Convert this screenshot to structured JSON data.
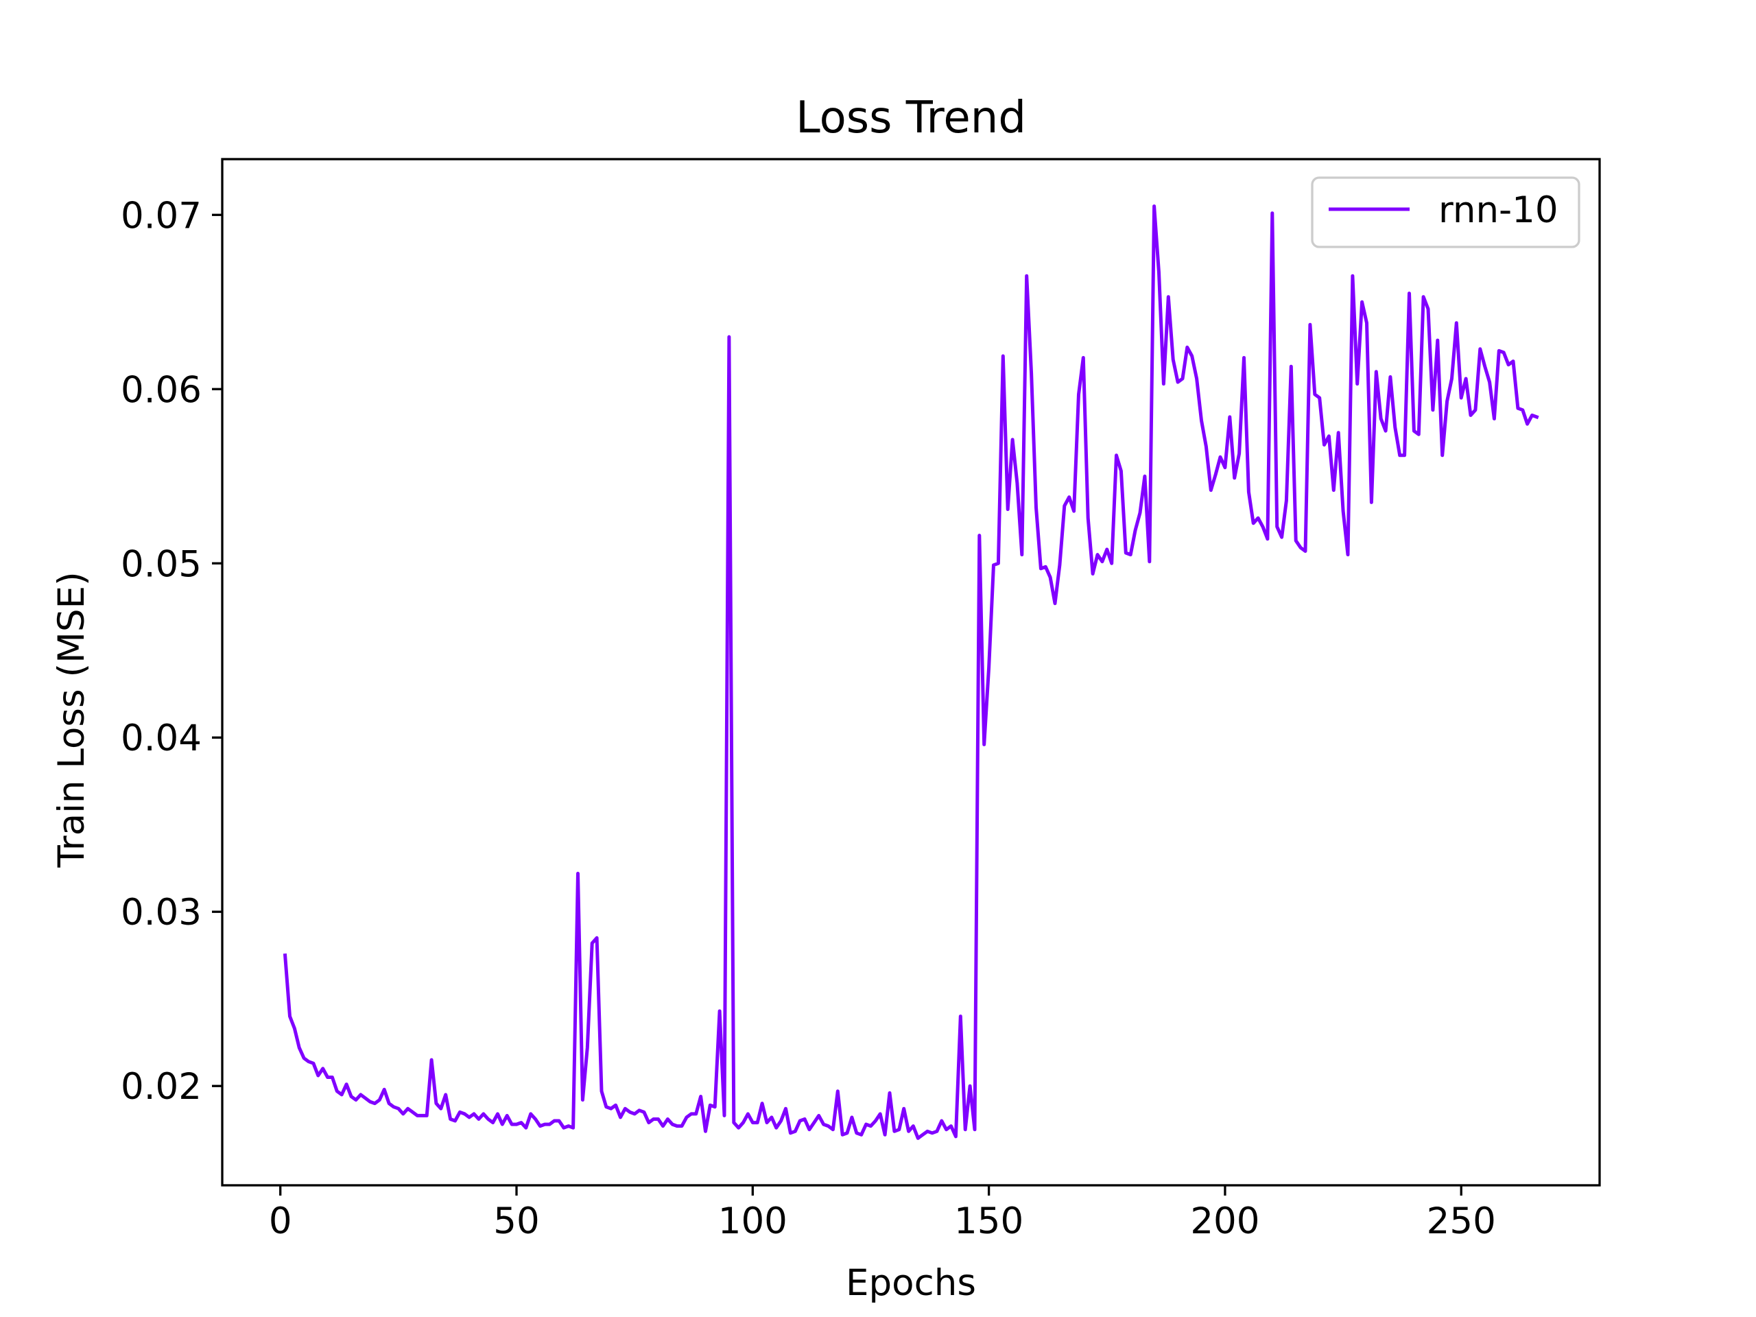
{
  "chart_data": {
    "type": "line",
    "title": "Loss Trend",
    "xlabel": "Epochs",
    "ylabel": "Train Loss (MSE)",
    "xlim": [
      -12.3,
      279.3
    ],
    "ylim": [
      0.0143,
      0.0732
    ],
    "x_ticks": [
      0,
      50,
      100,
      150,
      200,
      250
    ],
    "x_tick_labels": [
      "0",
      "50",
      "100",
      "150",
      "200",
      "250"
    ],
    "y_ticks": [
      0.02,
      0.03,
      0.04,
      0.05,
      0.06,
      0.07
    ],
    "y_tick_labels": [
      "0.02",
      "0.03",
      "0.04",
      "0.05",
      "0.06",
      "0.07"
    ],
    "grid": false,
    "legend": {
      "position": "top-right",
      "entries": [
        {
          "label": "rnn-10",
          "color": "#8000ff"
        }
      ]
    },
    "series": [
      {
        "name": "rnn-10",
        "color": "#8000ff",
        "x_start": 1,
        "x_step": 1,
        "values": [
          0.0275,
          0.024,
          0.0233,
          0.0222,
          0.0216,
          0.0214,
          0.0213,
          0.0206,
          0.021,
          0.0205,
          0.0205,
          0.0197,
          0.0195,
          0.0201,
          0.0194,
          0.0192,
          0.0195,
          0.0193,
          0.0191,
          0.019,
          0.0192,
          0.0198,
          0.019,
          0.0188,
          0.0187,
          0.0184,
          0.0187,
          0.0185,
          0.0183,
          0.0183,
          0.0183,
          0.0215,
          0.019,
          0.0187,
          0.0195,
          0.0181,
          0.018,
          0.0185,
          0.0184,
          0.0182,
          0.0184,
          0.0181,
          0.0184,
          0.0181,
          0.0179,
          0.0184,
          0.0178,
          0.0183,
          0.0178,
          0.0178,
          0.0179,
          0.0176,
          0.0184,
          0.0181,
          0.0177,
          0.0178,
          0.0178,
          0.018,
          0.018,
          0.0176,
          0.0177,
          0.0176,
          0.0322,
          0.0192,
          0.0222,
          0.0282,
          0.0285,
          0.0197,
          0.0188,
          0.0187,
          0.0189,
          0.0182,
          0.0187,
          0.0185,
          0.0184,
          0.0186,
          0.0185,
          0.0179,
          0.0181,
          0.0181,
          0.0177,
          0.0181,
          0.0178,
          0.0177,
          0.0177,
          0.0182,
          0.0184,
          0.0184,
          0.0194,
          0.0174,
          0.0189,
          0.0188,
          0.0243,
          0.0183,
          0.063,
          0.0179,
          0.0176,
          0.0179,
          0.0184,
          0.0179,
          0.0179,
          0.019,
          0.0179,
          0.0182,
          0.0176,
          0.018,
          0.0187,
          0.0173,
          0.0174,
          0.018,
          0.0181,
          0.0175,
          0.0179,
          0.0183,
          0.0178,
          0.0177,
          0.0175,
          0.0197,
          0.0172,
          0.0173,
          0.0182,
          0.0173,
          0.0172,
          0.0178,
          0.0177,
          0.018,
          0.0184,
          0.0172,
          0.0196,
          0.0174,
          0.0175,
          0.0187,
          0.0174,
          0.0177,
          0.017,
          0.0172,
          0.0174,
          0.0173,
          0.0174,
          0.018,
          0.0175,
          0.0177,
          0.0171,
          0.024,
          0.0175,
          0.02,
          0.0175,
          0.0516,
          0.0396,
          0.044,
          0.0499,
          0.05,
          0.0619,
          0.0531,
          0.0571,
          0.0546,
          0.0505,
          0.0665,
          0.0609,
          0.0532,
          0.0497,
          0.0498,
          0.0492,
          0.0477,
          0.0499,
          0.0533,
          0.0538,
          0.053,
          0.0597,
          0.0618,
          0.0526,
          0.0494,
          0.0505,
          0.0501,
          0.0508,
          0.05,
          0.0562,
          0.0553,
          0.0506,
          0.0505,
          0.0519,
          0.0529,
          0.055,
          0.0501,
          0.0705,
          0.0667,
          0.0603,
          0.0653,
          0.0617,
          0.0604,
          0.0606,
          0.0624,
          0.0619,
          0.0606,
          0.0582,
          0.0567,
          0.0542,
          0.0551,
          0.0561,
          0.0555,
          0.0584,
          0.0549,
          0.0563,
          0.0618,
          0.0541,
          0.0523,
          0.0526,
          0.0521,
          0.0514,
          0.0701,
          0.0521,
          0.0515,
          0.0536,
          0.0613,
          0.0513,
          0.0509,
          0.0507,
          0.0637,
          0.0597,
          0.0595,
          0.0568,
          0.0573,
          0.0542,
          0.0575,
          0.053,
          0.0505,
          0.0665,
          0.0603,
          0.065,
          0.0638,
          0.0535,
          0.061,
          0.0583,
          0.0576,
          0.0607,
          0.0578,
          0.0562,
          0.0562,
          0.0655,
          0.0576,
          0.0574,
          0.0653,
          0.0646,
          0.0588,
          0.0628,
          0.0562,
          0.0593,
          0.0606,
          0.0638,
          0.0595,
          0.0606,
          0.0585,
          0.0588,
          0.0623,
          0.0613,
          0.0604,
          0.0583,
          0.0622,
          0.0621,
          0.0614,
          0.0616,
          0.0589,
          0.0588,
          0.058,
          0.0585,
          0.0584
        ]
      }
    ]
  }
}
